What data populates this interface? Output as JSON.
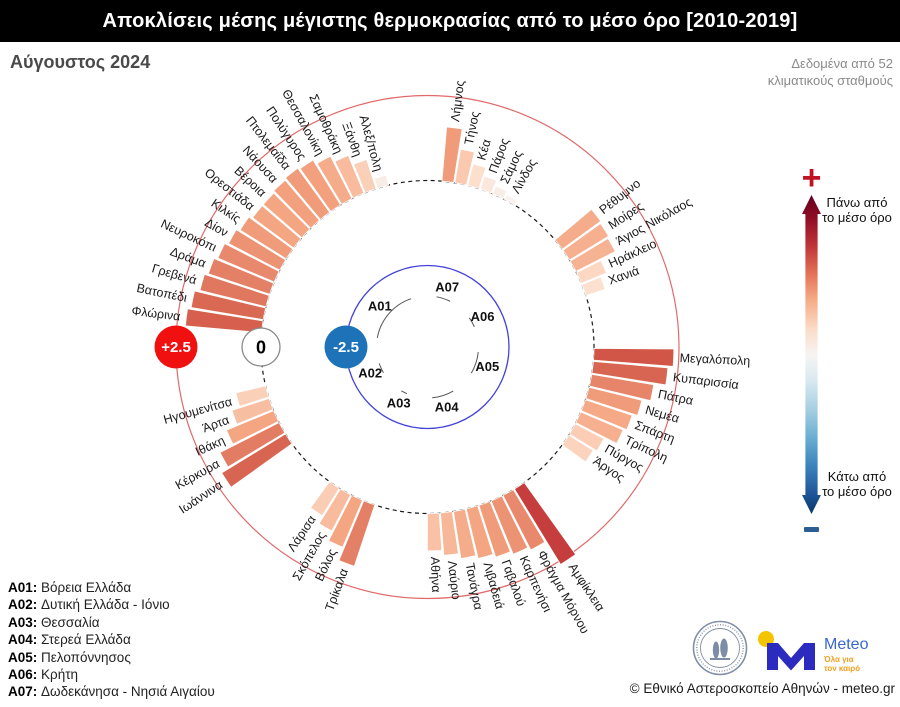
{
  "header": {
    "title": "Αποκλίσεις μέσης μέγιστης θερμοκρασίας από το μέσο όρο [2010-2019]",
    "subtitle": "Αύγουστος 2024",
    "note_line1": "Δεδομένα από 52",
    "note_line2": "κλιματικούς σταθμούς"
  },
  "chart_data": {
    "type": "bar",
    "layout_style": "polar",
    "units": "°C deviation from 2010-2019 mean",
    "axis": {
      "min": -2.5,
      "zero": 0,
      "max": 2.5,
      "badges": [
        {
          "label": "+2.5",
          "ring": "max"
        },
        {
          "label": "0",
          "ring": "zero"
        },
        {
          "label": "-2.5",
          "ring": "min"
        }
      ]
    },
    "layout": {
      "start_angle": 277,
      "slot_deg": 4.5,
      "gap_deg": 18,
      "sequence": [
        "A01",
        "A07",
        "A06",
        "A05",
        "A04",
        "A03",
        "A02"
      ]
    },
    "color_scale": {
      "domain": [
        0,
        0.75,
        1.5,
        2.25,
        3.0
      ],
      "colors": [
        "#f7f7f7",
        "#fddbc7",
        "#f4a582",
        "#d6604d",
        "#b2182b"
      ]
    },
    "style": {
      "zero_circle": "#1a1a1a",
      "max_circle": "#e06a6a",
      "min_circle": "#4343d9",
      "plus_badge": "#f01010",
      "minus_badge": "#1e72b8",
      "region_arc": "#555555"
    },
    "regions": [
      {
        "code": "A01",
        "name": "Βόρεια Ελλάδα",
        "stations": [
          {
            "name": "Φλώρινα",
            "value": 2.25
          },
          {
            "name": "Βατοπέδι",
            "value": 2.15
          },
          {
            "name": "Γρεβενά",
            "value": 2.0
          },
          {
            "name": "Δράμα",
            "value": 1.9
          },
          {
            "name": "Νευροκόπι",
            "value": 1.8
          },
          {
            "name": "Δίον",
            "value": 1.7
          },
          {
            "name": "Κιλκίς",
            "value": 1.6
          },
          {
            "name": "Ορεστιάδα",
            "value": 1.5
          },
          {
            "name": "Βέροια",
            "value": 1.5
          },
          {
            "name": "Νάουσα",
            "value": 1.55
          },
          {
            "name": "Πτολεμαΐδα",
            "value": 1.6
          },
          {
            "name": "Πολύγυρος",
            "value": 1.55
          },
          {
            "name": "Θεσσαλονίκη",
            "value": 1.4
          },
          {
            "name": "Σαμοθράκη",
            "value": 1.2
          },
          {
            "name": "Ξάνθη",
            "value": 0.9
          },
          {
            "name": "Αλεξ/πολη",
            "value": 0.3
          }
        ]
      },
      {
        "code": "A02",
        "name": "Δυτική Ελλάδα - Ιόνιο",
        "stations": [
          {
            "name": "Ιωάννινα",
            "value": 2.2
          },
          {
            "name": "Κέρκυρα",
            "value": 1.95
          },
          {
            "name": "Ιθάκη",
            "value": 1.5
          },
          {
            "name": "Άρτα",
            "value": 1.15
          },
          {
            "name": "Ηγουμενίτσα",
            "value": 0.9
          }
        ]
      },
      {
        "code": "A03",
        "name": "Θεσσαλία",
        "stations": [
          {
            "name": "Τρίκαλα",
            "value": 1.9
          },
          {
            "name": "Βόλος",
            "value": 1.5
          },
          {
            "name": "Σκόπελος",
            "value": 1.2
          },
          {
            "name": "Λάρισα",
            "value": 0.95
          }
        ]
      },
      {
        "code": "A04",
        "name": "Στερεά Ελλάδα",
        "stations": [
          {
            "name": "Αμφίκλεια",
            "value": 2.6
          },
          {
            "name": "Φράγμα Μόρνου",
            "value": 1.8
          },
          {
            "name": "Καρπενήσι",
            "value": 1.7
          },
          {
            "name": "Γαβαλού",
            "value": 1.6
          },
          {
            "name": "Λιβαδειά",
            "value": 1.5
          },
          {
            "name": "Τανάγρα",
            "value": 1.4
          },
          {
            "name": "Λαύριο",
            "value": 1.25
          },
          {
            "name": "Αθήνα",
            "value": 1.1
          }
        ]
      },
      {
        "code": "A05",
        "name": "Πελοπόννησος",
        "stations": [
          {
            "name": "Μεγαλόπολη",
            "value": 2.35
          },
          {
            "name": "Κυπαρισσία",
            "value": 2.2
          },
          {
            "name": "Πάτρα",
            "value": 1.85
          },
          {
            "name": "Νεμέα",
            "value": 1.6
          },
          {
            "name": "Σπάρτη",
            "value": 1.45
          },
          {
            "name": "Τρίπολη",
            "value": 1.35
          },
          {
            "name": "Πύργος",
            "value": 0.95
          },
          {
            "name": "Άργος",
            "value": 0.85
          }
        ]
      },
      {
        "code": "A06",
        "name": "Κρήτη",
        "stations": [
          {
            "name": "Ρέθυμνο",
            "value": 1.4
          },
          {
            "name": "Μοίρες",
            "value": 1.35
          },
          {
            "name": "Άγιος Νικόλαος",
            "value": 1.3
          },
          {
            "name": "Ηράκλειο",
            "value": 0.8
          },
          {
            "name": "Χανιά",
            "value": 0.6
          }
        ]
      },
      {
        "code": "A07",
        "name": "Δωδεκάνησα - Νησιά Αιγαίου",
        "stations": [
          {
            "name": "Λήμνος",
            "value": 1.6
          },
          {
            "name": "Τήνος",
            "value": 1.0
          },
          {
            "name": "Κέα",
            "value": 0.65
          },
          {
            "name": "Πάρος",
            "value": 0.4
          },
          {
            "name": "Σάμος",
            "value": 0.25
          },
          {
            "name": "Λίνδος",
            "value": 0.15
          }
        ]
      }
    ]
  },
  "colorbar": {
    "plus_symbol": "+",
    "minus_symbol": "-",
    "above_label": "Πάνω από το μέσο όρο",
    "below_label": "Κάτω από το μέσο όρο"
  },
  "footer": {
    "copyright": "© Εθνικό Αστεροσκοπείο Αθηνών - meteo.gr",
    "meteo": {
      "name": "Meteo",
      "tagline1": "Όλα για",
      "tagline2": "τον καιρό"
    }
  }
}
